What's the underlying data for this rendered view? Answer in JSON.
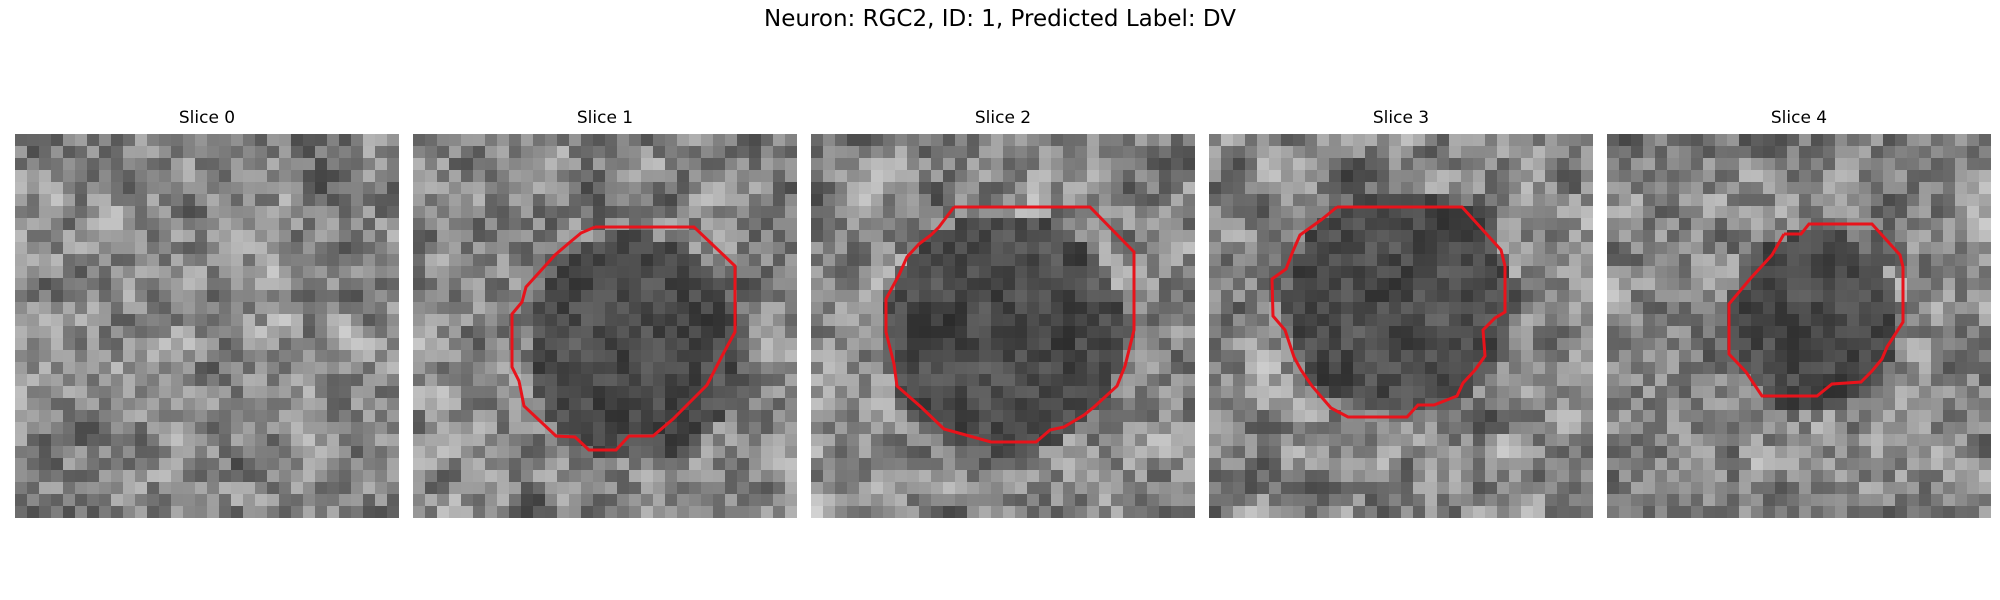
{
  "figure": {
    "title": "Neuron: RGC2, ID: 1, Predicted Label: DV"
  },
  "panels": [
    {
      "title": "Slice 0",
      "seed": 11,
      "has_contour": false,
      "dark_blob": null
    },
    {
      "title": "Slice 1",
      "seed": 23,
      "has_contour": true,
      "dark_blob": [
        0.58,
        0.56,
        0.26,
        0.28
      ]
    },
    {
      "title": "Slice 2",
      "seed": 37,
      "has_contour": true,
      "dark_blob": [
        0.5,
        0.52,
        0.3,
        0.29
      ]
    },
    {
      "title": "Slice 3",
      "seed": 41,
      "has_contour": true,
      "dark_blob": [
        0.5,
        0.44,
        0.28,
        0.27
      ]
    },
    {
      "title": "Slice 4",
      "seed": 53,
      "has_contour": true,
      "dark_blob": [
        0.54,
        0.49,
        0.21,
        0.22
      ]
    }
  ],
  "contour_color": "#e8131b"
}
